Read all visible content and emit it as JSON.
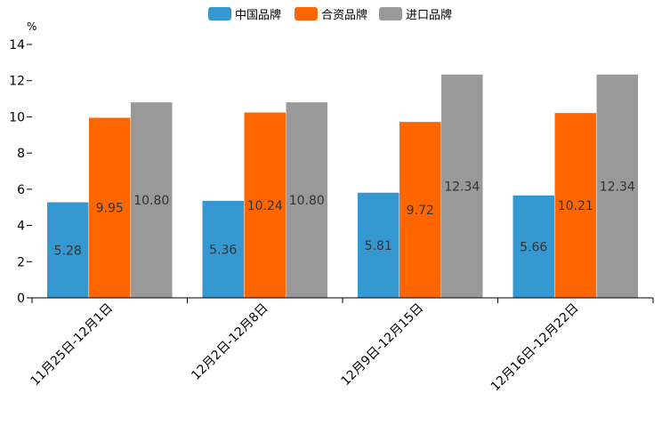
{
  "chart_data": {
    "type": "bar",
    "unit": "%",
    "categories": [
      "11月25日-12月1日",
      "12月2日-12月8日",
      "12月9日-12月15日",
      "12月16日-12月22日"
    ],
    "series": [
      {
        "name": "中国品牌",
        "color": "#3598d0",
        "values": [
          5.28,
          5.36,
          5.81,
          5.66
        ]
      },
      {
        "name": "合资品牌",
        "color": "#ff6600",
        "values": [
          9.95,
          10.24,
          9.72,
          10.21
        ]
      },
      {
        "name": "进口品牌",
        "color": "#999999",
        "values": [
          10.8,
          10.8,
          12.34,
          12.34
        ]
      }
    ],
    "value_labels": [
      [
        "5.28",
        "5.36",
        "5.81",
        "5.66"
      ],
      [
        "9.95",
        "10.24",
        "9.72",
        "10.21"
      ],
      [
        "10.80",
        "10.80",
        "12.34",
        "12.34"
      ]
    ],
    "ylim": [
      0,
      14
    ],
    "yticks": [
      0,
      2,
      4,
      6,
      8,
      10,
      12,
      14
    ],
    "legend_position": "top-center",
    "grid": false
  }
}
